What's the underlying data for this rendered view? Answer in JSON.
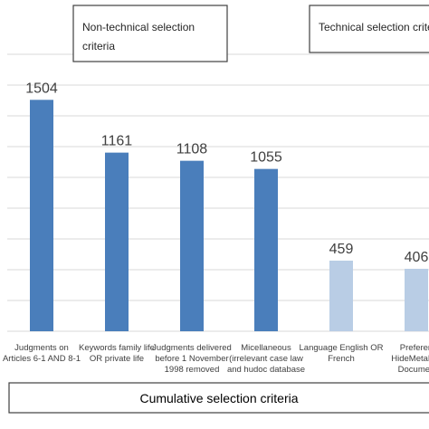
{
  "chart_data": {
    "type": "bar",
    "categories": [
      [
        "Judgments on",
        "Articles 6-1 AND 8-1"
      ],
      [
        "Keywords family life",
        "OR private life"
      ],
      [
        "Judgments delivered",
        "before 1 November",
        "1998 removed"
      ],
      [
        "Micellaneous",
        "(irrelevant case law",
        "and hudoc database"
      ],
      [
        "Language English OR",
        "French"
      ],
      [
        "Preferen",
        "HideMetaDat",
        "Documen"
      ]
    ],
    "values": [
      1504,
      1161,
      1108,
      1055,
      459,
      406
    ],
    "value_labels": [
      "1504",
      "1161",
      "1108",
      "1055",
      "459",
      "406"
    ],
    "group_of_bar": [
      "non-technical",
      "non-technical",
      "non-technical",
      "non-technical",
      "technical",
      "technical"
    ],
    "colors": {
      "non-technical": "#4a7ebb",
      "technical": "#b9cde5"
    },
    "ylim": [
      0,
      1800
    ],
    "grid": true,
    "groups": {
      "non_technical": [
        "Non-technical selection",
        "criteria"
      ],
      "technical": [
        "Technical selection crite"
      ]
    },
    "footer": "Cumulative selection criteria"
  }
}
